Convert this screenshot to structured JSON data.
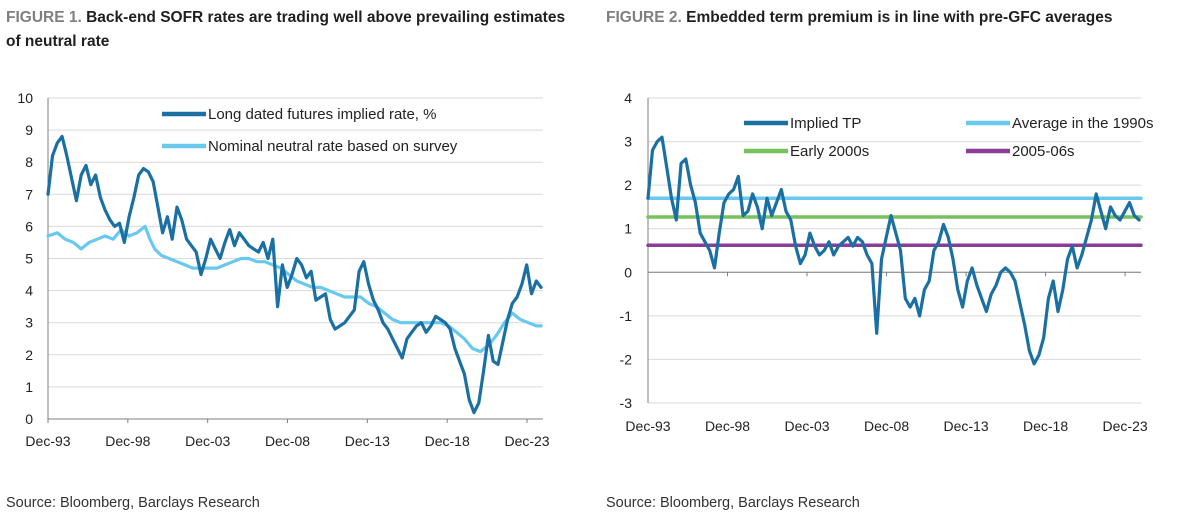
{
  "charts": [
    {
      "figure_label": "FIGURE 1.",
      "title": "Back-end SOFR rates are trading well above prevailing estimates of neutral rate",
      "source": "Source: Bloomberg, Barclays Research"
    },
    {
      "figure_label": "FIGURE 2.",
      "title": "Embedded term premium is in line with pre-GFC averages",
      "source": "Source: Bloomberg, Barclays Research"
    }
  ],
  "chart_data": [
    {
      "type": "line",
      "title": "Back-end SOFR rates are trading well above prevailing estimates of neutral rate",
      "xlabel": "",
      "ylabel": "",
      "x_tick_labels": [
        "Dec-93",
        "Dec-98",
        "Dec-03",
        "Dec-08",
        "Dec-13",
        "Dec-18",
        "Dec-23"
      ],
      "xlim": [
        1993.92,
        2024.92
      ],
      "ylim": [
        0,
        10
      ],
      "y_ticks": [
        0,
        1,
        2,
        3,
        4,
        5,
        6,
        7,
        8,
        9,
        10
      ],
      "grid": "horizontal",
      "legend_position": "top-right",
      "series": [
        {
          "name": "Long dated futures implied rate, %",
          "color": "#1a6fa3",
          "x": [
            1993.92,
            1994.2,
            1994.5,
            1994.8,
            1995.1,
            1995.4,
            1995.7,
            1996.0,
            1996.3,
            1996.6,
            1996.9,
            1997.2,
            1997.5,
            1997.8,
            1998.1,
            1998.4,
            1998.7,
            1999.0,
            1999.3,
            1999.6,
            1999.9,
            2000.2,
            2000.5,
            2000.8,
            2001.1,
            2001.4,
            2001.7,
            2002.0,
            2002.3,
            2002.6,
            2002.9,
            2003.2,
            2003.5,
            2003.8,
            2004.1,
            2004.4,
            2004.7,
            2005.0,
            2005.3,
            2005.6,
            2005.9,
            2006.2,
            2006.5,
            2006.8,
            2007.1,
            2007.4,
            2007.7,
            2008.0,
            2008.3,
            2008.6,
            2008.9,
            2009.2,
            2009.5,
            2009.8,
            2010.1,
            2010.4,
            2010.7,
            2011.0,
            2011.3,
            2011.6,
            2011.9,
            2012.2,
            2012.5,
            2012.8,
            2013.1,
            2013.4,
            2013.7,
            2014.0,
            2014.3,
            2014.6,
            2014.9,
            2015.2,
            2015.5,
            2015.8,
            2016.1,
            2016.4,
            2016.7,
            2017.0,
            2017.3,
            2017.6,
            2017.9,
            2018.2,
            2018.5,
            2018.8,
            2019.1,
            2019.4,
            2019.7,
            2020.0,
            2020.3,
            2020.6,
            2020.9,
            2021.2,
            2021.5,
            2021.8,
            2022.1,
            2022.4,
            2022.7,
            2023.0,
            2023.3,
            2023.6,
            2023.9,
            2024.2,
            2024.5,
            2024.8
          ],
          "values": [
            7.0,
            8.2,
            8.6,
            8.8,
            8.2,
            7.5,
            6.8,
            7.6,
            7.9,
            7.3,
            7.6,
            6.9,
            6.5,
            6.2,
            6.0,
            6.1,
            5.5,
            6.3,
            6.9,
            7.6,
            7.8,
            7.7,
            7.4,
            6.6,
            5.8,
            6.3,
            5.6,
            6.6,
            6.2,
            5.6,
            5.4,
            5.2,
            4.5,
            5.0,
            5.6,
            5.3,
            5.0,
            5.5,
            5.9,
            5.4,
            5.8,
            5.6,
            5.4,
            5.3,
            5.2,
            5.5,
            5.0,
            5.6,
            3.5,
            4.8,
            4.1,
            4.5,
            5.0,
            4.8,
            4.4,
            4.6,
            3.7,
            3.8,
            3.9,
            3.1,
            2.8,
            2.9,
            3.0,
            3.2,
            3.4,
            4.6,
            4.9,
            4.2,
            3.7,
            3.4,
            3.0,
            2.8,
            2.5,
            2.2,
            1.9,
            2.5,
            2.7,
            2.9,
            3.0,
            2.7,
            2.9,
            3.2,
            3.1,
            3.0,
            2.8,
            2.2,
            1.8,
            1.4,
            0.6,
            0.2,
            0.5,
            1.5,
            2.6,
            1.8,
            1.7,
            2.4,
            3.1,
            3.6,
            3.8,
            4.2,
            4.8,
            3.9,
            4.3,
            4.1
          ]
        },
        {
          "name": "Nominal neutral rate based on survey",
          "color": "#68c8ee",
          "x": [
            1993.92,
            1994.5,
            1995.0,
            1995.5,
            1996.0,
            1996.5,
            1997.0,
            1997.5,
            1998.0,
            1998.5,
            1999.0,
            1999.5,
            2000.0,
            2000.3,
            2000.6,
            2001.0,
            2001.5,
            2002.0,
            2002.5,
            2003.0,
            2003.5,
            2004.0,
            2004.5,
            2005.0,
            2005.5,
            2006.0,
            2006.5,
            2007.0,
            2007.5,
            2008.0,
            2008.5,
            2009.0,
            2009.5,
            2010.0,
            2010.5,
            2011.0,
            2011.5,
            2012.0,
            2012.5,
            2013.0,
            2013.5,
            2014.0,
            2014.5,
            2015.0,
            2015.5,
            2016.0,
            2016.5,
            2017.0,
            2017.5,
            2018.0,
            2018.5,
            2019.0,
            2019.5,
            2020.0,
            2020.5,
            2021.0,
            2021.5,
            2022.0,
            2022.5,
            2023.0,
            2023.5,
            2024.0,
            2024.5,
            2024.8
          ],
          "values": [
            5.7,
            5.8,
            5.6,
            5.5,
            5.3,
            5.5,
            5.6,
            5.7,
            5.6,
            5.9,
            5.7,
            5.8,
            6.0,
            5.6,
            5.3,
            5.1,
            5.0,
            4.9,
            4.8,
            4.7,
            4.7,
            4.7,
            4.7,
            4.8,
            4.9,
            5.0,
            5.0,
            4.9,
            4.9,
            4.8,
            4.7,
            4.5,
            4.3,
            4.2,
            4.1,
            4.1,
            4.0,
            3.9,
            3.8,
            3.8,
            3.8,
            3.6,
            3.5,
            3.3,
            3.1,
            3.0,
            3.0,
            3.0,
            3.0,
            3.0,
            3.0,
            2.9,
            2.7,
            2.5,
            2.2,
            2.1,
            2.3,
            2.6,
            3.0,
            3.3,
            3.1,
            3.0,
            2.9,
            2.9
          ]
        }
      ]
    },
    {
      "type": "line",
      "title": "Embedded term premium is in line with pre-GFC averages",
      "xlabel": "",
      "ylabel": "",
      "x_tick_labels": [
        "Dec-93",
        "Dec-98",
        "Dec-03",
        "Dec-08",
        "Dec-13",
        "Dec-18",
        "Dec-23"
      ],
      "xlim": [
        1993.92,
        2024.92
      ],
      "ylim": [
        -3,
        4
      ],
      "y_ticks": [
        -3,
        -2,
        -1,
        0,
        1,
        2,
        3,
        4
      ],
      "grid": "horizontal",
      "legend_position": "top",
      "series": [
        {
          "name": "Implied TP",
          "color": "#1a6fa3",
          "x": [
            1993.92,
            1994.2,
            1994.5,
            1994.8,
            1995.1,
            1995.4,
            1995.7,
            1996.0,
            1996.3,
            1996.6,
            1996.9,
            1997.2,
            1997.5,
            1997.8,
            1998.1,
            1998.4,
            1998.7,
            1999.0,
            1999.3,
            1999.6,
            1999.9,
            2000.2,
            2000.5,
            2000.8,
            2001.1,
            2001.4,
            2001.7,
            2002.0,
            2002.3,
            2002.6,
            2002.9,
            2003.2,
            2003.5,
            2003.8,
            2004.1,
            2004.4,
            2004.7,
            2005.0,
            2005.3,
            2005.6,
            2005.9,
            2006.2,
            2006.5,
            2006.8,
            2007.1,
            2007.4,
            2007.7,
            2008.0,
            2008.3,
            2008.6,
            2008.9,
            2009.2,
            2009.5,
            2009.8,
            2010.1,
            2010.4,
            2010.7,
            2011.0,
            2011.3,
            2011.6,
            2011.9,
            2012.2,
            2012.5,
            2012.8,
            2013.1,
            2013.4,
            2013.7,
            2014.0,
            2014.3,
            2014.6,
            2014.9,
            2015.2,
            2015.5,
            2015.8,
            2016.1,
            2016.4,
            2016.7,
            2017.0,
            2017.3,
            2017.6,
            2017.9,
            2018.2,
            2018.5,
            2018.8,
            2019.1,
            2019.4,
            2019.7,
            2020.0,
            2020.3,
            2020.6,
            2020.9,
            2021.2,
            2021.5,
            2021.8,
            2022.1,
            2022.4,
            2022.7,
            2023.0,
            2023.3,
            2023.6,
            2023.9,
            2024.2,
            2024.5,
            2024.8
          ],
          "values": [
            1.7,
            2.8,
            3.0,
            3.1,
            2.4,
            1.7,
            1.2,
            2.5,
            2.6,
            2.0,
            1.6,
            0.9,
            0.7,
            0.5,
            0.1,
            0.9,
            1.6,
            1.8,
            1.9,
            2.2,
            1.3,
            1.4,
            1.8,
            1.5,
            1.0,
            1.7,
            1.3,
            1.6,
            1.9,
            1.4,
            1.2,
            0.6,
            0.2,
            0.4,
            0.9,
            0.6,
            0.4,
            0.5,
            0.7,
            0.4,
            0.6,
            0.7,
            0.8,
            0.6,
            0.8,
            0.7,
            0.4,
            0.2,
            -1.4,
            0.3,
            0.8,
            1.3,
            0.9,
            0.5,
            -0.6,
            -0.8,
            -0.6,
            -1.0,
            -0.4,
            -0.2,
            0.5,
            0.7,
            1.1,
            0.8,
            0.3,
            -0.4,
            -0.8,
            -0.2,
            0.1,
            -0.3,
            -0.6,
            -0.9,
            -0.5,
            -0.3,
            0.0,
            0.1,
            0.0,
            -0.2,
            -0.7,
            -1.2,
            -1.8,
            -2.1,
            -1.9,
            -1.5,
            -0.6,
            -0.2,
            -0.9,
            -0.4,
            0.3,
            0.6,
            0.1,
            0.4,
            0.8,
            1.2,
            1.8,
            1.4,
            1.0,
            1.5,
            1.3,
            1.2,
            1.4,
            1.6,
            1.3,
            1.2
          ]
        },
        {
          "name": "Average in the 1990s",
          "color": "#68c8ee",
          "x": [
            1993.92,
            2024.92
          ],
          "values": [
            1.7,
            1.7
          ]
        },
        {
          "name": "Early 2000s",
          "color": "#77c25c",
          "x": [
            1993.92,
            2024.92
          ],
          "values": [
            1.27,
            1.27
          ]
        },
        {
          "name": "2005-06s",
          "color": "#8a3d96",
          "x": [
            1993.92,
            2024.92
          ],
          "values": [
            0.62,
            0.62
          ]
        }
      ]
    }
  ]
}
